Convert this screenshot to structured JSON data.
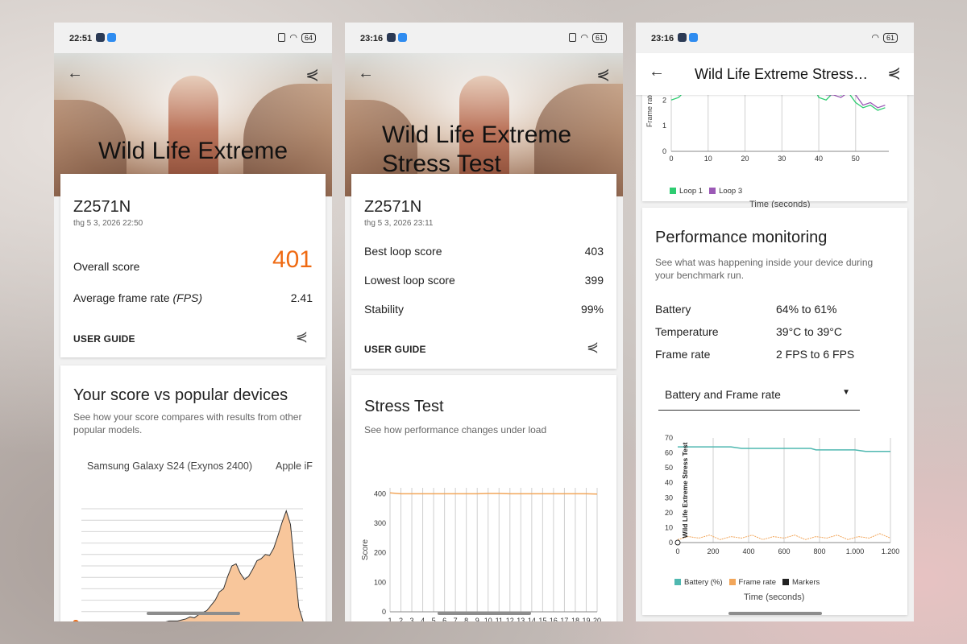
{
  "colors": {
    "accent": "#ef6a12",
    "loop1": "#2ecc71",
    "loop3": "#9b59b6",
    "battery": "#4fb8b0",
    "frame_rate": "#f2a65a",
    "marker": "#222222"
  },
  "screen1": {
    "status": {
      "time": "22:51",
      "battery": "64"
    },
    "hero_title": "Wild Life Extreme",
    "device": "Z2571N",
    "date": "thg 5 3, 2026 22:50",
    "overall_label": "Overall score",
    "overall_value": "401",
    "fps_label": "Average frame rate",
    "fps_unit": "(FPS)",
    "fps_value": "2.41",
    "user_guide": "USER GUIDE",
    "compare_title": "Your score vs popular devices",
    "compare_sub": "See how your score compares with results from other popular models.",
    "tabs": [
      "Samsung Galaxy S24 (Exynos 2400)",
      "Apple iF"
    ]
  },
  "screen2": {
    "status": {
      "time": "23:16",
      "battery": "61"
    },
    "hero_title": "Wild Life Extreme Stress Test",
    "device": "Z2571N",
    "date": "thg 5 3, 2026 23:11",
    "rows": [
      {
        "label": "Best loop score",
        "value": "403"
      },
      {
        "label": "Lowest loop score",
        "value": "399"
      },
      {
        "label": "Stability",
        "value": "99%"
      }
    ],
    "user_guide": "USER GUIDE",
    "stress_title": "Stress Test",
    "stress_sub": "See how performance changes under load"
  },
  "screen3": {
    "status": {
      "time": "23:16",
      "battery": "61"
    },
    "appbar_title": "Wild Life Extreme Stress…",
    "perf_title": "Performance monitoring",
    "perf_sub": "See what was happening inside your device during your benchmark run.",
    "rows": [
      {
        "label": "Battery",
        "value": "64% to 61%"
      },
      {
        "label": "Temperature",
        "value": "39°C to 39°C"
      },
      {
        "label": "Frame rate",
        "value": "2 FPS to 6 FPS"
      }
    ],
    "dropdown": "Battery and Frame rate",
    "loop_chart_xlabel": "Time (seconds)",
    "loop_chart_ylabel": "Frame rate",
    "loop_legend": [
      "Loop 1",
      "Loop 3"
    ],
    "perf_chart_xlabel": "Time (seconds)",
    "perf_chart_rotated": "Wild Life Extreme Stress Test",
    "perf_legend": [
      "Battery (%)",
      "Frame rate",
      "Markers"
    ]
  },
  "chart_data": [
    {
      "id": "compare-histogram",
      "type": "area",
      "title": "Your score vs popular devices",
      "x": [
        0,
        1,
        2,
        3,
        4,
        5,
        6,
        7,
        8,
        9,
        10,
        11,
        12,
        13,
        14,
        15,
        16,
        17,
        18,
        19,
        20,
        21,
        22,
        23,
        24,
        25,
        26,
        27,
        28,
        29,
        30,
        31,
        32,
        33,
        34,
        35,
        36,
        37,
        38,
        39,
        40,
        41,
        42,
        43,
        44,
        45,
        46,
        47,
        48,
        49,
        50,
        51,
        52,
        53
      ],
      "values": [
        0,
        0,
        0,
        0,
        0,
        0,
        0,
        0,
        0,
        0,
        0,
        0,
        0,
        0,
        0,
        1,
        1,
        1,
        1,
        1,
        1,
        2,
        2,
        2,
        3,
        4,
        6,
        5,
        8,
        10,
        12,
        17,
        22,
        30,
        33,
        45,
        55,
        57,
        48,
        42,
        45,
        52,
        60,
        62,
        66,
        65,
        72,
        84,
        97,
        108,
        95,
        55,
        15,
        2
      ],
      "ylim": [
        0,
        110
      ],
      "series_name": "",
      "grid": true
    },
    {
      "id": "stress-loop-scores",
      "type": "line",
      "categories": [
        "1",
        "2",
        "3",
        "4",
        "5",
        "6",
        "7",
        "8",
        "9",
        "10",
        "11",
        "12",
        "13",
        "14",
        "15",
        "16",
        "17",
        "18",
        "19",
        "20"
      ],
      "values": [
        403,
        400,
        400,
        400,
        400,
        400,
        400,
        400,
        400,
        401,
        401,
        400,
        400,
        400,
        400,
        400,
        400,
        400,
        400,
        399
      ],
      "xlabel": "Loop",
      "ylabel": "Score",
      "yticks": [
        0,
        100,
        200,
        300,
        400
      ],
      "ylim": [
        0,
        420
      ],
      "grid": true
    },
    {
      "id": "loop-frame-rate",
      "type": "line",
      "xlabel": "Time (seconds)",
      "ylabel": "Frame rate",
      "xticks": [
        0,
        10,
        20,
        30,
        40,
        50
      ],
      "xlim": [
        0,
        59
      ],
      "ylim": [
        0,
        3.2
      ],
      "series": [
        {
          "name": "Loop 1",
          "x": [
            0,
            2,
            4,
            6,
            8,
            10,
            12,
            14,
            16,
            18,
            20,
            22,
            24,
            26,
            28,
            30,
            32,
            34,
            36,
            38,
            40,
            42,
            44,
            46,
            48,
            50,
            52,
            54,
            56,
            58
          ],
          "values": [
            2.0,
            2.1,
            2.4,
            2.5,
            2.3,
            2.7,
            2.6,
            2.8,
            2.7,
            2.9,
            2.8,
            3.1,
            2.6,
            2.6,
            2.8,
            2.6,
            2.7,
            2.7,
            2.8,
            2.7,
            2.1,
            2.0,
            2.3,
            2.2,
            2.3,
            1.9,
            1.7,
            1.8,
            1.6,
            1.7
          ]
        },
        {
          "name": "Loop 3",
          "x": [
            0,
            2,
            4,
            6,
            8,
            10,
            12,
            14,
            16,
            18,
            20,
            22,
            24,
            26,
            28,
            30,
            32,
            34,
            36,
            38,
            40,
            42,
            44,
            46,
            48,
            50,
            52,
            54,
            56,
            58
          ],
          "values": [
            2.3,
            2.2,
            2.5,
            2.4,
            2.6,
            2.8,
            2.7,
            2.6,
            2.9,
            2.7,
            2.8,
            2.8,
            2.9,
            2.7,
            2.9,
            2.8,
            2.6,
            2.8,
            2.7,
            2.9,
            2.8,
            2.2,
            2.2,
            2.1,
            2.3,
            2.2,
            1.8,
            1.9,
            1.7,
            1.8
          ]
        }
      ],
      "legend": "bottom"
    },
    {
      "id": "battery-frame-rate",
      "type": "line",
      "xlabel": "Time (seconds)",
      "xticks": [
        "0",
        "200",
        "400",
        "600",
        "800",
        "1.000",
        "1.200"
      ],
      "xlim": [
        0,
        1200
      ],
      "yticks": [
        0,
        10,
        20,
        30,
        40,
        50,
        60,
        70
      ],
      "ylim": [
        0,
        70
      ],
      "series": [
        {
          "name": "Battery (%)",
          "x": [
            0,
            100,
            200,
            300,
            360,
            400,
            600,
            750,
            780,
            1000,
            1060,
            1100,
            1200
          ],
          "values": [
            64,
            64,
            64,
            64,
            63,
            63,
            63,
            63,
            62,
            62,
            61,
            61,
            61
          ]
        },
        {
          "name": "Frame rate",
          "x": [
            0,
            60,
            120,
            180,
            240,
            300,
            360,
            420,
            480,
            540,
            600,
            660,
            720,
            780,
            840,
            900,
            960,
            1020,
            1080,
            1140,
            1200
          ],
          "values": [
            2,
            4,
            3,
            5,
            2,
            4,
            3,
            5,
            2,
            4,
            3,
            5,
            2,
            4,
            3,
            5,
            2,
            4,
            3,
            6,
            3
          ]
        }
      ],
      "markers_x": [
        200,
        400,
        600,
        800,
        1000,
        1200
      ],
      "legend": "bottom"
    }
  ]
}
